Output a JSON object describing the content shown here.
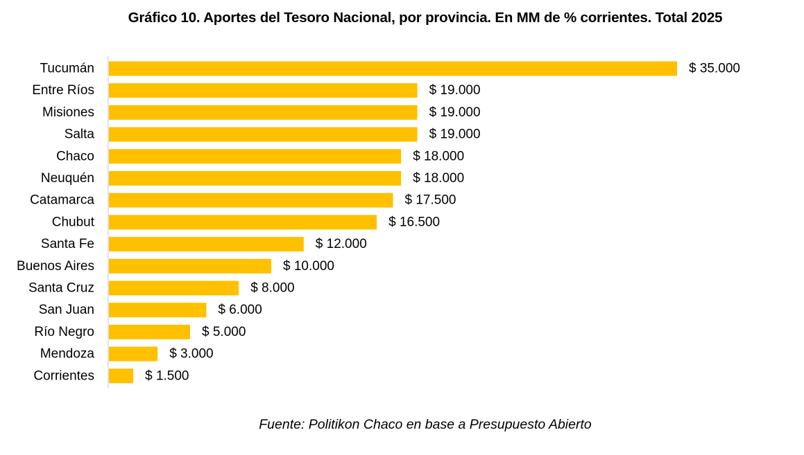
{
  "chart_data": {
    "type": "bar",
    "orientation": "horizontal",
    "title": "Gráfico 10. Aportes del Tesoro Nacional, por provincia. En MM de % corrientes. Total 2025",
    "categories": [
      "Tucumán",
      "Entre Ríos",
      "Misiones",
      "Salta",
      "Chaco",
      "Neuquén",
      "Catamarca",
      "Chubut",
      "Santa Fe",
      "Buenos Aires",
      "Santa Cruz",
      "San Juan",
      "Río Negro",
      "Mendoza",
      "Corrientes"
    ],
    "values": [
      35000,
      19000,
      19000,
      19000,
      18000,
      18000,
      17500,
      16500,
      12000,
      10000,
      8000,
      6000,
      5000,
      3000,
      1500
    ],
    "value_labels": [
      "$ 35.000",
      "$ 19.000",
      "$ 19.000",
      "$ 19.000",
      "$ 18.000",
      "$ 18.000",
      "$ 17.500",
      "$ 16.500",
      "$ 12.000",
      "$ 10.000",
      "$ 8.000",
      "$ 6.000",
      "$ 5.000",
      "$ 3.000",
      "$ 1.500"
    ],
    "xlim": [
      0,
      35000
    ],
    "xlabel": "",
    "ylabel": "",
    "grid": false,
    "legend": "none",
    "bar_color": "#FFC000",
    "axis_color": "#D9D9D9",
    "source": "Fuente: Politikon Chaco en base a Presupuesto Abierto"
  }
}
